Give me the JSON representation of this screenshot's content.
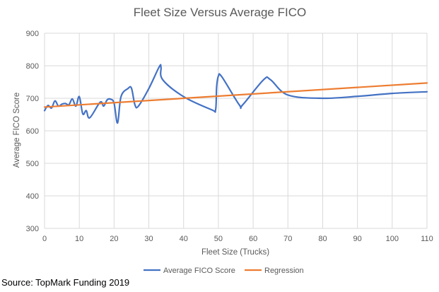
{
  "chart_data": {
    "type": "line",
    "title": "Fleet Size Versus Average FICO",
    "xlabel": "Fleet Size (Trucks)",
    "ylabel": "Average FICO Score",
    "xlim": [
      0,
      110
    ],
    "ylim": [
      300,
      900
    ],
    "xticks": [
      0,
      10,
      20,
      30,
      40,
      50,
      60,
      70,
      80,
      90,
      100,
      110
    ],
    "yticks": [
      300,
      400,
      500,
      600,
      700,
      800,
      900
    ],
    "grid": true,
    "legend_position": "bottom",
    "series": [
      {
        "name": "Average FICO Score",
        "color": "#4472C4",
        "smooth": true,
        "points": [
          [
            0,
            662
          ],
          [
            1,
            678
          ],
          [
            2,
            670
          ],
          [
            3,
            692
          ],
          [
            4,
            676
          ],
          [
            5,
            682
          ],
          [
            6,
            684
          ],
          [
            7,
            680
          ],
          [
            8,
            698
          ],
          [
            9,
            676
          ],
          [
            10,
            705
          ],
          [
            11,
            652
          ],
          [
            12,
            662
          ],
          [
            13,
            640
          ],
          [
            16,
            688
          ],
          [
            17,
            676
          ],
          [
            18,
            695
          ],
          [
            19,
            697
          ],
          [
            20,
            685
          ],
          [
            21,
            624
          ],
          [
            22,
            705
          ],
          [
            24,
            730
          ],
          [
            25,
            731
          ],
          [
            26,
            680
          ],
          [
            27,
            676
          ],
          [
            30,
            730
          ],
          [
            33,
            797
          ],
          [
            33.5,
            795
          ],
          [
            34,
            757
          ],
          [
            40,
            705
          ],
          [
            48,
            665
          ],
          [
            49.2,
            665
          ],
          [
            49.5,
            735
          ],
          [
            50,
            768
          ],
          [
            51,
            766
          ],
          [
            56,
            680
          ],
          [
            57,
            680
          ],
          [
            63,
            757
          ],
          [
            65,
            757
          ],
          [
            70,
            710
          ],
          [
            80,
            700
          ],
          [
            90,
            706
          ],
          [
            100,
            715
          ],
          [
            110,
            720
          ]
        ]
      },
      {
        "name": "Regression",
        "color": "#ED7D31",
        "smooth": false,
        "points": [
          [
            0,
            673
          ],
          [
            110,
            747
          ]
        ]
      }
    ]
  },
  "source_text": "Source: TopMark Funding 2019"
}
